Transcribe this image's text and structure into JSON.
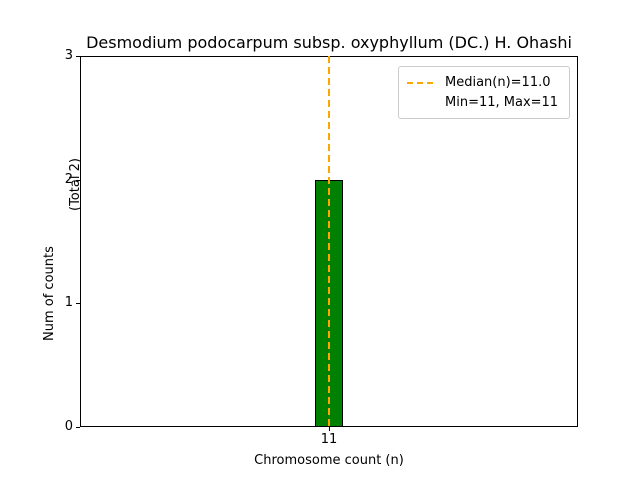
{
  "chart_data": {
    "type": "bar",
    "title": "Desmodium podocarpum subsp. oxyphyllum (DC.) H. Ohashi",
    "xlabel": "Chromosome count (n)",
    "ylabel": "Num of counts",
    "total_label": "(Total 2)",
    "categories": [
      "11"
    ],
    "values": [
      2
    ],
    "ylim": [
      0,
      3
    ],
    "yticks": [
      0,
      1,
      2,
      3
    ],
    "grid": false,
    "legend_position": "upper right",
    "bar_color": "#008000",
    "bar_edge_color": "#000000",
    "median_line": {
      "x": "11",
      "value": 11.0,
      "color": "#FFA500",
      "style": "dashed"
    },
    "stats": {
      "median": 11.0,
      "min": 11,
      "max": 11,
      "total_counts": 2
    }
  },
  "legend": {
    "items": [
      {
        "label": "Median(n)=11.0",
        "marker": "dashed-line",
        "color": "#FFA500"
      },
      {
        "label": "Min=11, Max=11",
        "marker": "none"
      }
    ]
  }
}
